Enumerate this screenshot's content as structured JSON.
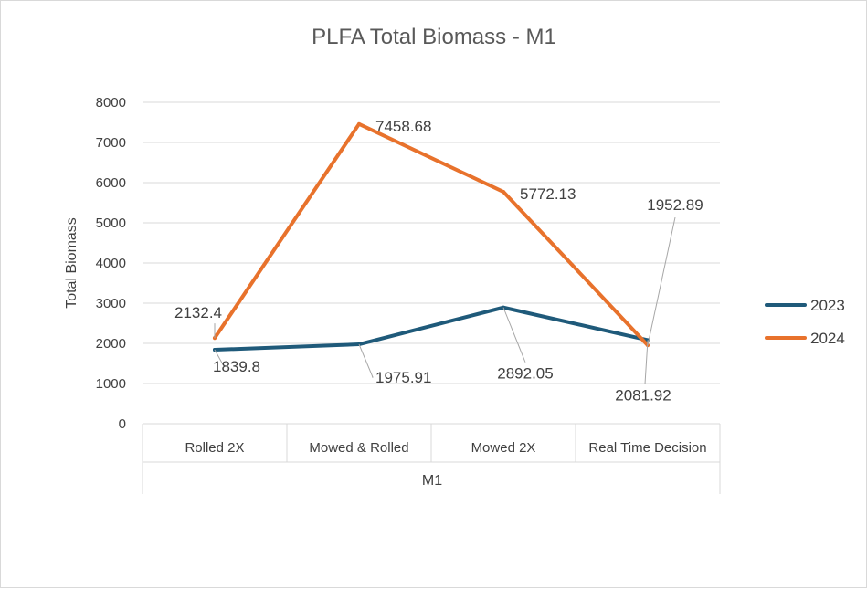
{
  "chart_data": {
    "type": "line",
    "title": "PLFA Total Biomass - M1",
    "xlabel": "M1",
    "ylabel": "Total Biomass",
    "categories": [
      "Rolled 2X",
      "Mowed & Rolled",
      "Mowed 2X",
      "Real Time Decision"
    ],
    "ylim": [
      0,
      8000
    ],
    "yticks": [
      0,
      1000,
      2000,
      3000,
      4000,
      5000,
      6000,
      7000,
      8000
    ],
    "grid": true,
    "legend_position": "right",
    "series": [
      {
        "name": "2023",
        "color": "#1f5a7a",
        "values": [
          1839.8,
          1975.91,
          2892.05,
          2081.92
        ],
        "labels": [
          "1839.8",
          "1975.91",
          "2892.05",
          "2081.92"
        ]
      },
      {
        "name": "2024",
        "color": "#e8722c",
        "values": [
          2132.4,
          7458.68,
          5772.13,
          1952.89
        ],
        "labels": [
          "2132.4",
          "7458.68",
          "5772.13",
          "1952.89"
        ]
      }
    ]
  }
}
